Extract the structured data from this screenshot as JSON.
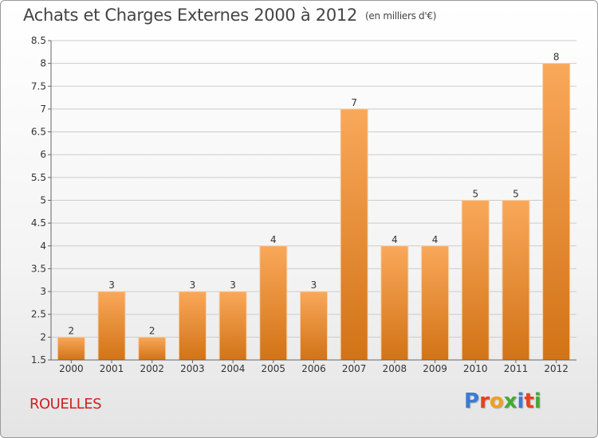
{
  "title": "Achats et Charges Externes 2000 à 2012",
  "unit": "(en milliers d'€)",
  "commune": "ROUELLES",
  "logo": {
    "text": "Proxiti",
    "colors": [
      "#3a7bd5",
      "#e8401c",
      "#f0a020",
      "#44aa33",
      "#3a7bd5",
      "#e8401c",
      "#44aa33"
    ]
  },
  "colors": {
    "bar_light": "#f9a85a",
    "bar_dark": "#d27316",
    "grid": "#cccccc",
    "axis": "#666666"
  },
  "chart_data": {
    "type": "bar",
    "title": "Achats et Charges Externes 2000 à 2012",
    "categories": [
      "2000",
      "2001",
      "2002",
      "2003",
      "2004",
      "2005",
      "2006",
      "2007",
      "2008",
      "2009",
      "2010",
      "2011",
      "2012"
    ],
    "values": [
      2,
      3,
      2,
      3,
      3,
      4,
      3,
      7,
      4,
      4,
      5,
      5,
      8
    ],
    "ylim": [
      1.5,
      8.5
    ],
    "yticks": [
      "1.5",
      "2",
      "2.5",
      "3",
      "3.5",
      "4",
      "4.5",
      "5",
      "5.5",
      "6",
      "6.5",
      "7",
      "7.5",
      "8",
      "8.5"
    ],
    "grid": true,
    "xlabel": "",
    "ylabel": ""
  }
}
